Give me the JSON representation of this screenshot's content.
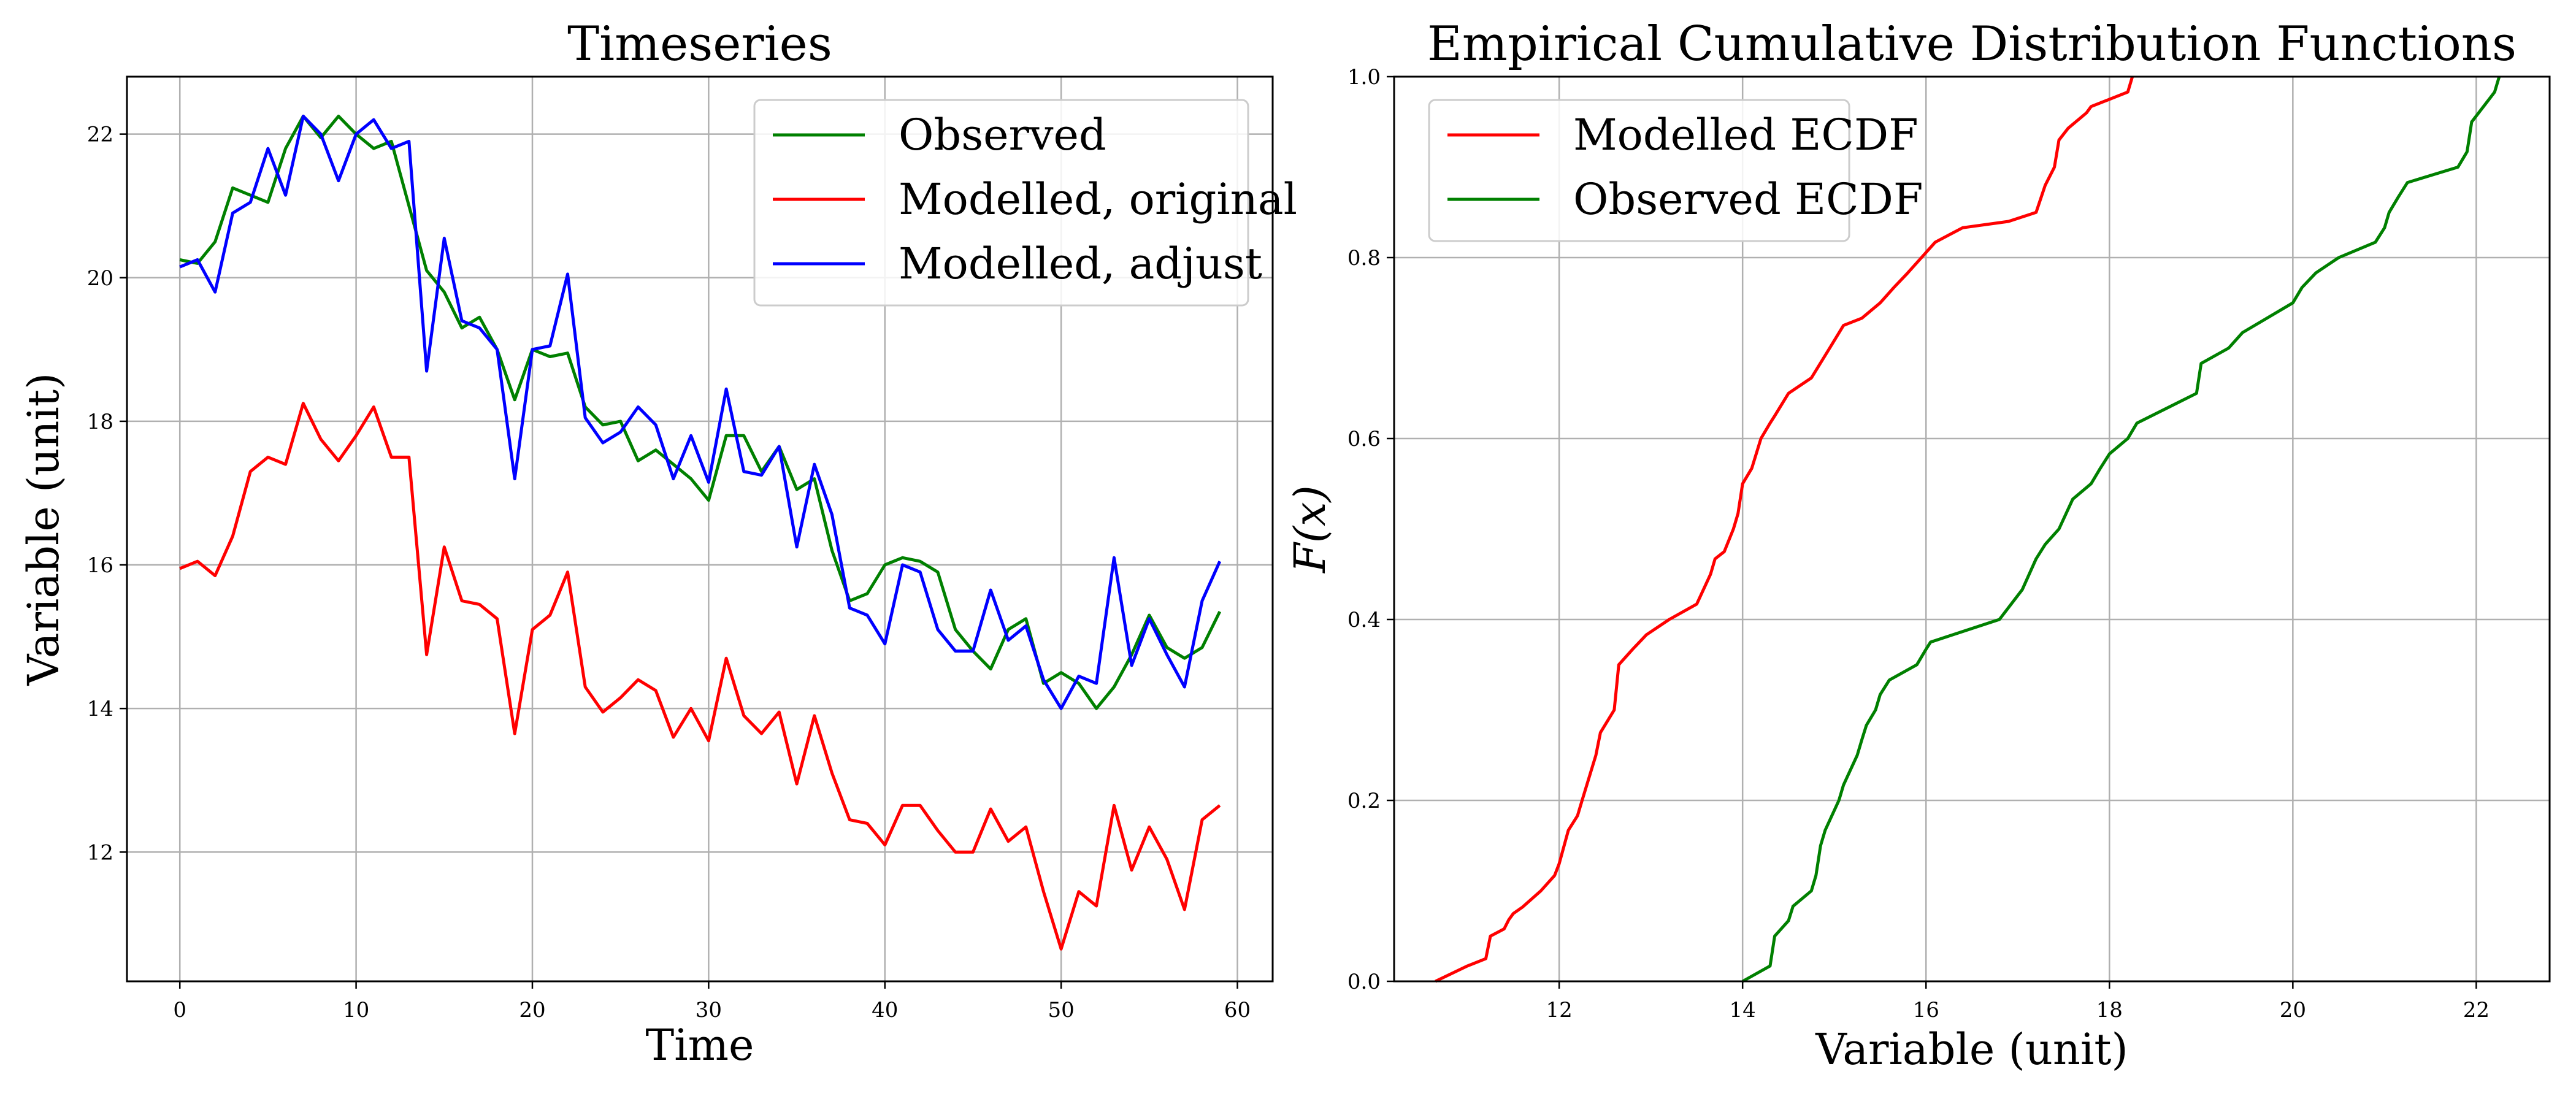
{
  "chart_data": [
    {
      "type": "line",
      "title": "Timeseries",
      "xlabel": "Time",
      "ylabel": "Variable (unit)",
      "xlim": [
        -3,
        62
      ],
      "ylim": [
        10.2,
        22.8
      ],
      "xticks": [
        0,
        10,
        20,
        30,
        40,
        50,
        60
      ],
      "xtick_labels": [
        "0",
        "10",
        "20",
        "30",
        "40",
        "50",
        "60"
      ],
      "yticks": [
        12,
        14,
        16,
        18,
        20,
        22
      ],
      "ytick_labels": [
        "12",
        "14",
        "16",
        "18",
        "20",
        "22"
      ],
      "grid": true,
      "legend_position": "top-right",
      "x": [
        0,
        1,
        2,
        3,
        4,
        5,
        6,
        7,
        8,
        9,
        10,
        11,
        12,
        13,
        14,
        15,
        16,
        17,
        18,
        19,
        20,
        21,
        22,
        23,
        24,
        25,
        26,
        27,
        28,
        29,
        30,
        31,
        32,
        33,
        34,
        35,
        36,
        37,
        38,
        39,
        40,
        41,
        42,
        43,
        44,
        45,
        46,
        47,
        48,
        49,
        50,
        51,
        52,
        53,
        54,
        55,
        56,
        57,
        58,
        59
      ],
      "series": [
        {
          "name": "Observed",
          "color": "#008000",
          "values": [
            20.25,
            20.2,
            20.5,
            21.25,
            21.15,
            21.05,
            21.8,
            22.25,
            21.95,
            22.25,
            22.0,
            21.8,
            21.9,
            21.0,
            20.1,
            19.8,
            19.3,
            19.45,
            19.0,
            18.3,
            19.0,
            18.9,
            18.95,
            18.2,
            17.95,
            18.0,
            17.45,
            17.6,
            17.4,
            17.2,
            16.9,
            17.8,
            17.8,
            17.3,
            17.65,
            17.05,
            17.2,
            16.2,
            15.5,
            15.6,
            16.0,
            16.1,
            16.05,
            15.9,
            15.1,
            14.8,
            14.55,
            15.1,
            15.25,
            14.35,
            14.5,
            14.35,
            14.0,
            14.3,
            14.75,
            15.3,
            14.85,
            14.7,
            14.85,
            15.35
          ]
        },
        {
          "name": "Modelled, original",
          "color": "#ff0000",
          "values": [
            15.95,
            16.05,
            15.85,
            16.4,
            17.3,
            17.5,
            17.4,
            18.25,
            17.75,
            17.45,
            17.8,
            18.2,
            17.5,
            17.5,
            14.75,
            16.25,
            15.5,
            15.45,
            15.25,
            13.65,
            15.1,
            15.3,
            15.9,
            14.3,
            13.95,
            14.15,
            14.4,
            14.25,
            13.6,
            14.0,
            13.55,
            14.7,
            13.9,
            13.65,
            13.95,
            12.95,
            13.9,
            13.1,
            12.45,
            12.4,
            12.1,
            12.65,
            12.65,
            12.3,
            12.0,
            12.0,
            12.6,
            12.15,
            12.35,
            11.45,
            10.65,
            11.45,
            11.25,
            12.65,
            11.75,
            12.35,
            11.9,
            11.2,
            12.45,
            12.65
          ]
        },
        {
          "name": "Modelled, adjust",
          "color": "#0000ff",
          "values": [
            20.15,
            20.25,
            19.8,
            20.9,
            21.05,
            21.8,
            21.15,
            22.25,
            22.0,
            21.35,
            22.0,
            22.2,
            21.8,
            21.9,
            18.7,
            20.55,
            19.4,
            19.3,
            19.0,
            17.2,
            19.0,
            19.05,
            20.05,
            18.05,
            17.7,
            17.85,
            18.2,
            17.95,
            17.2,
            17.8,
            17.15,
            18.45,
            17.3,
            17.25,
            17.65,
            16.25,
            17.4,
            16.7,
            15.4,
            15.3,
            14.9,
            16.0,
            15.9,
            15.1,
            14.8,
            14.8,
            15.65,
            14.95,
            15.15,
            14.4,
            14.0,
            14.45,
            14.35,
            16.1,
            14.6,
            15.25,
            14.75,
            14.3,
            15.5,
            16.05
          ]
        }
      ]
    },
    {
      "type": "line",
      "title": "Empirical Cumulative Distribution Functions",
      "xlabel": "Variable (unit)",
      "ylabel": "F(x)",
      "xlim": [
        10.2,
        22.8
      ],
      "ylim": [
        0.0,
        1.0
      ],
      "xticks": [
        12,
        14,
        16,
        18,
        20,
        22
      ],
      "xtick_labels": [
        "12",
        "14",
        "16",
        "18",
        "20",
        "22"
      ],
      "yticks": [
        0.0,
        0.2,
        0.4,
        0.6,
        0.8,
        1.0
      ],
      "ytick_labels": [
        "0.0",
        "0.2",
        "0.4",
        "0.6",
        "0.8",
        "1.0"
      ],
      "grid": true,
      "legend_position": "top-left",
      "series": [
        {
          "name": "Modelled ECDF",
          "color": "#ff0000",
          "x": [
            10.65,
            11.0,
            11.2,
            11.25,
            11.4,
            11.45,
            11.5,
            11.6,
            11.8,
            11.95,
            12.0,
            12.1,
            12.2,
            12.25,
            12.4,
            12.45,
            12.6,
            12.65,
            12.8,
            12.95,
            13.2,
            13.5,
            13.65,
            13.7,
            13.8,
            13.9,
            13.95,
            14.0,
            14.1,
            14.2,
            14.3,
            14.35,
            14.5,
            14.75,
            14.95,
            15.1,
            15.3,
            15.5,
            15.65,
            15.8,
            15.95,
            16.1,
            16.4,
            16.9,
            17.2,
            17.3,
            17.4,
            17.45,
            17.55,
            17.75,
            17.8,
            18.0,
            18.2,
            18.25
          ],
          "y": [
            0.0,
            0.017,
            0.025,
            0.05,
            0.058,
            0.068,
            0.075,
            0.082,
            0.1,
            0.117,
            0.13,
            0.167,
            0.183,
            0.2,
            0.25,
            0.275,
            0.3,
            0.35,
            0.367,
            0.383,
            0.4,
            0.417,
            0.45,
            0.467,
            0.475,
            0.5,
            0.517,
            0.55,
            0.567,
            0.6,
            0.617,
            0.625,
            0.65,
            0.667,
            0.7,
            0.725,
            0.733,
            0.75,
            0.767,
            0.783,
            0.8,
            0.817,
            0.833,
            0.84,
            0.85,
            0.88,
            0.9,
            0.93,
            0.943,
            0.96,
            0.967,
            0.975,
            0.983,
            1.0
          ]
        },
        {
          "name": "Observed ECDF",
          "color": "#008000",
          "x": [
            14.0,
            14.3,
            14.35,
            14.5,
            14.55,
            14.75,
            14.8,
            14.85,
            14.9,
            15.05,
            15.1,
            15.25,
            15.3,
            15.35,
            15.45,
            15.5,
            15.6,
            15.9,
            16.0,
            16.05,
            16.2,
            16.8,
            17.05,
            17.2,
            17.3,
            17.45,
            17.6,
            17.8,
            17.9,
            18.0,
            18.2,
            18.3,
            18.95,
            19.0,
            19.3,
            19.45,
            20.0,
            20.1,
            20.25,
            20.5,
            20.9,
            21.0,
            21.05,
            21.15,
            21.25,
            21.8,
            21.9,
            21.95,
            22.2,
            22.25
          ],
          "y": [
            0.0,
            0.017,
            0.05,
            0.067,
            0.083,
            0.1,
            0.117,
            0.15,
            0.167,
            0.2,
            0.217,
            0.25,
            0.267,
            0.283,
            0.3,
            0.317,
            0.333,
            0.35,
            0.367,
            0.375,
            0.38,
            0.4,
            0.433,
            0.467,
            0.483,
            0.5,
            0.533,
            0.55,
            0.567,
            0.583,
            0.6,
            0.617,
            0.65,
            0.683,
            0.7,
            0.717,
            0.75,
            0.767,
            0.783,
            0.8,
            0.817,
            0.833,
            0.85,
            0.867,
            0.883,
            0.9,
            0.917,
            0.95,
            0.983,
            1.0
          ]
        }
      ]
    }
  ]
}
